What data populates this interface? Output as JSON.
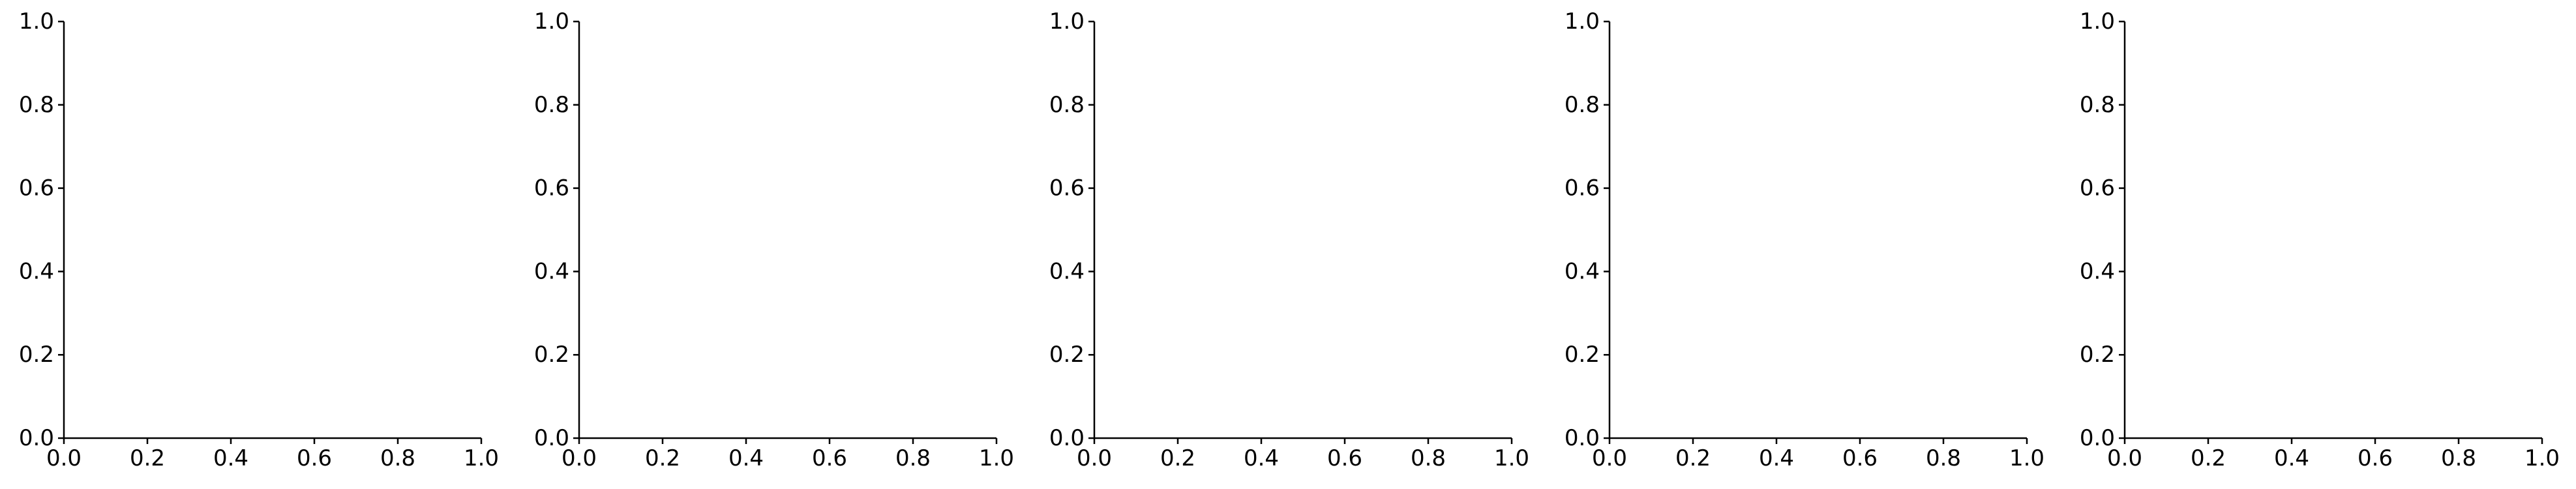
{
  "chart_data": [
    {
      "type": "line",
      "title": "",
      "xlabel": "",
      "ylabel": "",
      "series": [],
      "xlim": [
        0.0,
        1.0
      ],
      "ylim": [
        0.0,
        1.0
      ],
      "x_ticks": [
        "0.0",
        "0.2",
        "0.4",
        "0.6",
        "0.8",
        "1.0"
      ],
      "y_ticks": [
        "0.0",
        "0.2",
        "0.4",
        "0.6",
        "0.8",
        "1.0"
      ],
      "grid": false,
      "spines": [
        "left",
        "bottom"
      ]
    },
    {
      "type": "line",
      "title": "",
      "xlabel": "",
      "ylabel": "",
      "series": [],
      "xlim": [
        0.0,
        1.0
      ],
      "ylim": [
        0.0,
        1.0
      ],
      "x_ticks": [
        "0.0",
        "0.2",
        "0.4",
        "0.6",
        "0.8",
        "1.0"
      ],
      "y_ticks": [
        "0.0",
        "0.2",
        "0.4",
        "0.6",
        "0.8",
        "1.0"
      ],
      "grid": false,
      "spines": [
        "left",
        "bottom"
      ]
    },
    {
      "type": "line",
      "title": "",
      "xlabel": "",
      "ylabel": "",
      "series": [],
      "xlim": [
        0.0,
        1.0
      ],
      "ylim": [
        0.0,
        1.0
      ],
      "x_ticks": [
        "0.0",
        "0.2",
        "0.4",
        "0.6",
        "0.8",
        "1.0"
      ],
      "y_ticks": [
        "0.0",
        "0.2",
        "0.4",
        "0.6",
        "0.8",
        "1.0"
      ],
      "grid": false,
      "spines": [
        "left",
        "bottom"
      ]
    },
    {
      "type": "line",
      "title": "",
      "xlabel": "",
      "ylabel": "",
      "series": [],
      "xlim": [
        0.0,
        1.0
      ],
      "ylim": [
        0.0,
        1.0
      ],
      "x_ticks": [
        "0.0",
        "0.2",
        "0.4",
        "0.6",
        "0.8",
        "1.0"
      ],
      "y_ticks": [
        "0.0",
        "0.2",
        "0.4",
        "0.6",
        "0.8",
        "1.0"
      ],
      "grid": false,
      "spines": [
        "left",
        "bottom"
      ]
    },
    {
      "type": "line",
      "title": "",
      "xlabel": "",
      "ylabel": "",
      "series": [],
      "xlim": [
        0.0,
        1.0
      ],
      "ylim": [
        0.0,
        1.0
      ],
      "x_ticks": [
        "0.0",
        "0.2",
        "0.4",
        "0.6",
        "0.8",
        "1.0"
      ],
      "y_ticks": [
        "0.0",
        "0.2",
        "0.4",
        "0.6",
        "0.8",
        "1.0"
      ],
      "grid": false,
      "spines": [
        "left",
        "bottom"
      ]
    }
  ],
  "colors": {
    "axis": "#000000",
    "background": "#ffffff"
  }
}
